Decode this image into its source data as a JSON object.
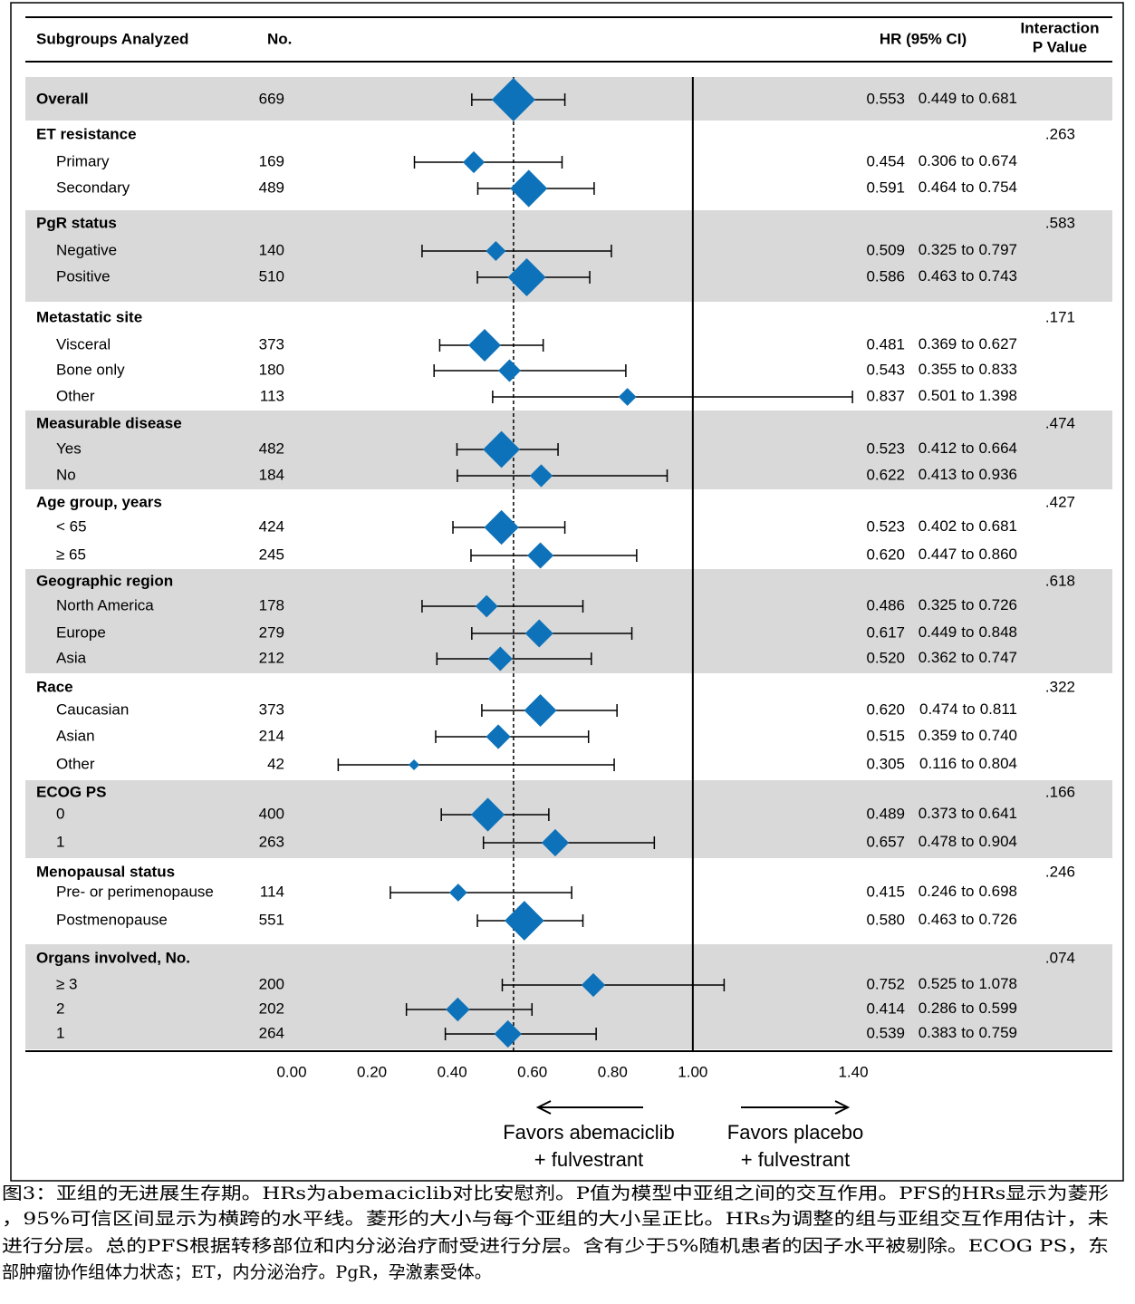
{
  "chart_data": {
    "type": "forest",
    "headers": {
      "subgroup": "Subgroups Analyzed",
      "n": "No.",
      "hr": "HR (95% CI)",
      "p": [
        "Interaction",
        "P Value"
      ]
    },
    "ci_separator": "to",
    "overall": {
      "label": "Overall",
      "n": 669,
      "values": [
        0.553,
        0.449,
        0.681
      ],
      "value_labels": [
        "0.553",
        "0.449",
        "0.681"
      ],
      "shaded": true
    },
    "groups": [
      {
        "label": "ET resistance",
        "p_value": ".263",
        "shaded": false,
        "rows": [
          {
            "label": "Primary",
            "n": 169,
            "values": [
              0.454,
              0.306,
              0.674
            ],
            "value_labels": [
              "0.454",
              "0.306",
              "0.674"
            ]
          },
          {
            "label": "Secondary",
            "n": 489,
            "values": [
              0.591,
              0.464,
              0.754
            ],
            "value_labels": [
              "0.591",
              "0.464",
              "0.754"
            ]
          }
        ]
      },
      {
        "label": "PgR status",
        "p_value": ".583",
        "shaded": true,
        "rows": [
          {
            "label": "Negative",
            "n": 140,
            "values": [
              0.509,
              0.325,
              0.797
            ],
            "value_labels": [
              "0.509",
              "0.325",
              "0.797"
            ]
          },
          {
            "label": "Positive",
            "n": 510,
            "values": [
              0.586,
              0.463,
              0.743
            ],
            "value_labels": [
              "0.586",
              "0.463",
              "0.743"
            ]
          }
        ]
      },
      {
        "label": "Metastatic site",
        "p_value": ".171",
        "shaded": false,
        "rows": [
          {
            "label": "Visceral",
            "n": 373,
            "values": [
              0.481,
              0.369,
              0.627
            ],
            "value_labels": [
              "0.481",
              "0.369",
              "0.627"
            ]
          },
          {
            "label": "Bone only",
            "n": 180,
            "values": [
              0.543,
              0.355,
              0.833
            ],
            "value_labels": [
              "0.543",
              "0.355",
              "0.833"
            ]
          },
          {
            "label": "Other",
            "n": 113,
            "values": [
              0.837,
              0.501,
              1.398
            ],
            "value_labels": [
              "0.837",
              "0.501",
              "1.398"
            ]
          }
        ]
      },
      {
        "label": "Measurable disease",
        "p_value": ".474",
        "shaded": true,
        "rows": [
          {
            "label": "Yes",
            "n": 482,
            "values": [
              0.523,
              0.412,
              0.664
            ],
            "value_labels": [
              "0.523",
              "0.412",
              "0.664"
            ]
          },
          {
            "label": "No",
            "n": 184,
            "values": [
              0.622,
              0.413,
              0.936
            ],
            "value_labels": [
              "0.622",
              "0.413",
              "0.936"
            ]
          }
        ]
      },
      {
        "label": "Age group, years",
        "p_value": ".427",
        "shaded": false,
        "rows": [
          {
            "label": "< 65",
            "n": 424,
            "values": [
              0.523,
              0.402,
              0.681
            ],
            "value_labels": [
              "0.523",
              "0.402",
              "0.681"
            ]
          },
          {
            "label": "≥ 65",
            "n": 245,
            "values": [
              0.62,
              0.447,
              0.86
            ],
            "value_labels": [
              "0.620",
              "0.447",
              "0.860"
            ]
          }
        ]
      },
      {
        "label": "Geographic region",
        "p_value": ".618",
        "shaded": true,
        "rows": [
          {
            "label": "North America",
            "n": 178,
            "values": [
              0.486,
              0.325,
              0.726
            ],
            "value_labels": [
              "0.486",
              "0.325",
              "0.726"
            ]
          },
          {
            "label": "Europe",
            "n": 279,
            "values": [
              0.617,
              0.449,
              0.848
            ],
            "value_labels": [
              "0.617",
              "0.449",
              "0.848"
            ]
          },
          {
            "label": "Asia",
            "n": 212,
            "values": [
              0.52,
              0.362,
              0.747
            ],
            "value_labels": [
              "0.520",
              "0.362",
              "0.747"
            ]
          }
        ]
      },
      {
        "label": "Race",
        "p_value": ".322",
        "shaded": false,
        "rows": [
          {
            "label": "Caucasian",
            "n": 373,
            "values": [
              0.62,
              0.474,
              0.811
            ],
            "value_labels": [
              "0.620",
              "0.474",
              "0.811"
            ]
          },
          {
            "label": "Asian",
            "n": 214,
            "values": [
              0.515,
              0.359,
              0.74
            ],
            "value_labels": [
              "0.515",
              "0.359",
              "0.740"
            ]
          },
          {
            "label": "Other",
            "n": 42,
            "values": [
              0.305,
              0.116,
              0.804
            ],
            "value_labels": [
              "0.305",
              "0.116",
              "0.804"
            ]
          }
        ]
      },
      {
        "label": "ECOG PS",
        "p_value": ".166",
        "shaded": true,
        "rows": [
          {
            "label": "0",
            "n": 400,
            "values": [
              0.489,
              0.373,
              0.641
            ],
            "value_labels": [
              "0.489",
              "0.373",
              "0.641"
            ]
          },
          {
            "label": "1",
            "n": 263,
            "values": [
              0.657,
              0.478,
              0.904
            ],
            "value_labels": [
              "0.657",
              "0.478",
              "0.904"
            ]
          }
        ]
      },
      {
        "label": "Menopausal status",
        "p_value": ".246",
        "shaded": false,
        "rows": [
          {
            "label": "Pre- or perimenopause",
            "n": 114,
            "values": [
              0.415,
              0.246,
              0.698
            ],
            "value_labels": [
              "0.415",
              "0.246",
              "0.698"
            ]
          },
          {
            "label": "Postmenopause",
            "n": 551,
            "values": [
              0.58,
              0.463,
              0.726
            ],
            "value_labels": [
              "0.580",
              "0.463",
              "0.726"
            ]
          }
        ]
      },
      {
        "label": "Organs involved, No.",
        "p_value": ".074",
        "shaded": true,
        "rows": [
          {
            "label": "≥ 3",
            "n": 200,
            "values": [
              0.752,
              0.525,
              1.078
            ],
            "value_labels": [
              "0.752",
              "0.525",
              "1.078"
            ]
          },
          {
            "label": "2",
            "n": 202,
            "values": [
              0.414,
              0.286,
              0.599
            ],
            "value_labels": [
              "0.414",
              "0.286",
              "0.599"
            ]
          },
          {
            "label": "1",
            "n": 264,
            "values": [
              0.539,
              0.383,
              0.759
            ],
            "value_labels": [
              "0.539",
              "0.383",
              "0.759"
            ]
          }
        ]
      }
    ],
    "xlim": [
      0,
      1.4
    ],
    "xticks": [
      {
        "value": 0,
        "label": "0.00"
      },
      {
        "value": 0.2,
        "label": "0.20"
      },
      {
        "value": 0.4,
        "label": "0.40"
      },
      {
        "value": 0.6,
        "label": "0.60"
      },
      {
        "value": 0.8,
        "label": "0.80"
      },
      {
        "value": 1,
        "label": "1.00"
      },
      {
        "value": 1.4,
        "label": "1.40"
      }
    ],
    "color": "#0d72b9",
    "shade_color": "#d9d9d9",
    "annotations": [
      [
        "Favors abemaciclib",
        "+ fulvestrant"
      ],
      [
        "Favors placebo",
        "+ fulvestrant"
      ]
    ]
  },
  "caption": [
    "图3：亚组的无进展生存期。HRs为abemaciclib对比安慰剂。P值为模型中亚组之间的交互作用。PFS的HRs显示为菱形",
    "，95%可信区间显示为横跨的水平线。菱形的大小与每个亚组的大小呈正比。HRs为调整的组与亚组交互作用估计，未",
    "进行分层。总的PFS根据转移部位和内分泌治疗耐受进行分层。含有少于5%随机患者的因子水平被剔除。ECOG PS，东",
    "部肿瘤协作组体力状态；ET，内分泌治疗。PgR，孕激素受体。"
  ]
}
